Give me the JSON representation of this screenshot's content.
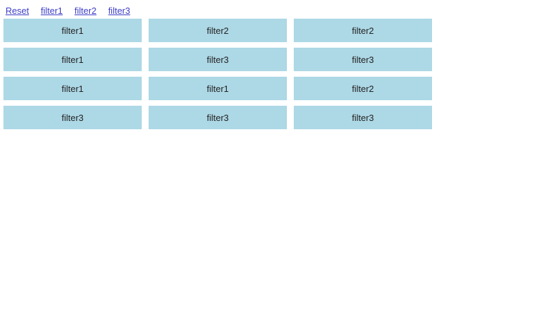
{
  "toolbar": {
    "links": [
      {
        "label": "Reset"
      },
      {
        "label": "filter1"
      },
      {
        "label": "filter2"
      },
      {
        "label": "filter3"
      }
    ]
  },
  "grid": {
    "items": [
      "filter1",
      "filter2",
      "filter2",
      "filter1",
      "filter3",
      "filter3",
      "filter1",
      "filter1",
      "filter2",
      "filter3",
      "filter3",
      "filter3"
    ]
  },
  "colors": {
    "box_bg": "#add8e6",
    "link": "#3c3cc6",
    "box_text": "#222222",
    "page_bg": "#ffffff"
  }
}
